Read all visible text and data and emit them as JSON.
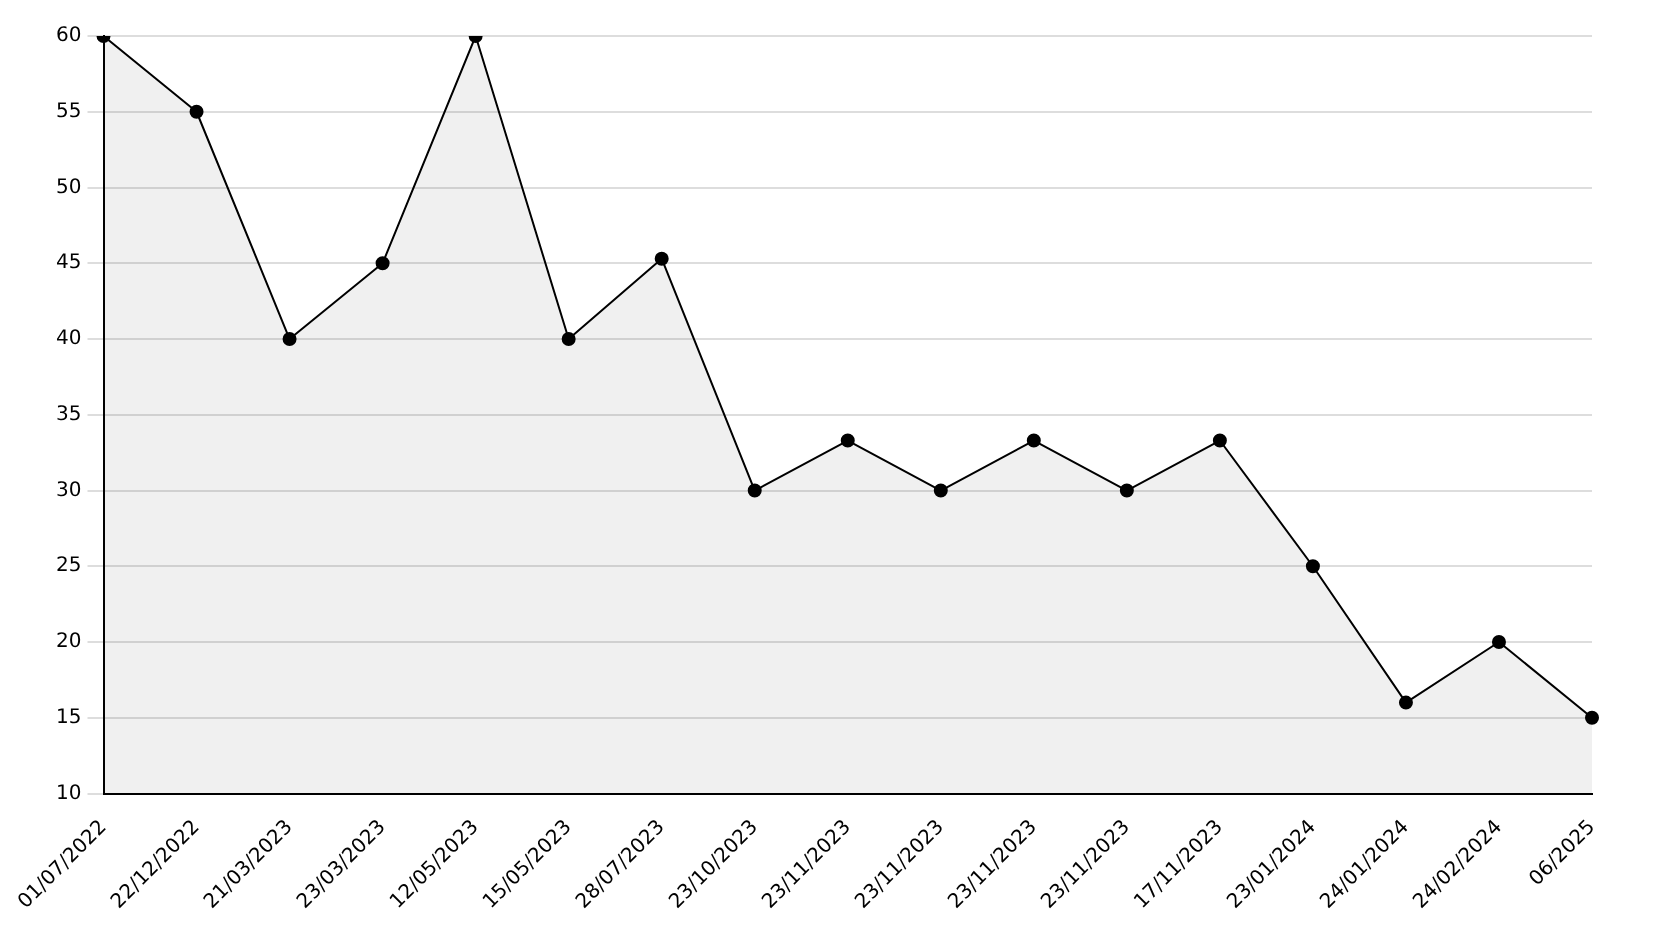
{
  "chart_data": {
    "type": "area",
    "categories": [
      "01/07/2022",
      "22/12/2022",
      "21/03/2023",
      "23/03/2023",
      "12/05/2023",
      "15/05/2023",
      "28/07/2023",
      "23/10/2023",
      "23/11/2023",
      "23/11/2023",
      "23/11/2023",
      "23/11/2023",
      "17/11/2023",
      "23/01/2024",
      "24/01/2024",
      "24/02/2024",
      "06/2025"
    ],
    "series": [
      {
        "color": "#000000",
        "values": [
          60,
          55,
          40,
          45,
          60,
          40,
          45.3,
          30,
          33.3,
          30,
          33.3,
          30,
          33.3,
          25,
          16,
          20,
          15
        ]
      }
    ],
    "ylim": [
      10,
      60
    ],
    "yticks": [
      10,
      15,
      20,
      25,
      30,
      35,
      40,
      45,
      50,
      55,
      60
    ],
    "grid": "y",
    "marker": "circle",
    "legend": false
  }
}
